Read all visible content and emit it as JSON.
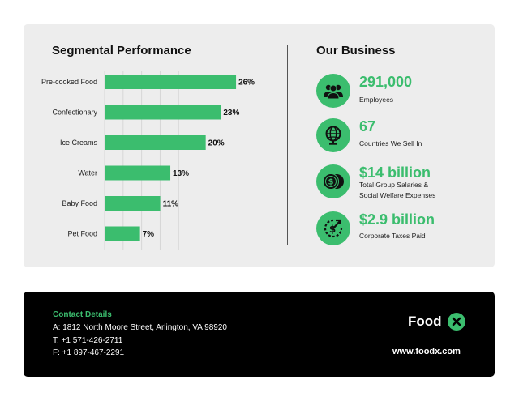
{
  "segmental": {
    "title": "Segmental Performance"
  },
  "chart_data": {
    "type": "bar",
    "orientation": "horizontal",
    "title": "Segmental Performance",
    "categories": [
      "Pre-cooked Food",
      "Confectionary",
      "Ice Creams",
      "Water",
      "Baby Food",
      "Pet Food"
    ],
    "values": [
      26,
      23,
      20,
      13,
      11,
      7
    ],
    "value_labels": [
      "26%",
      "23%",
      "20%",
      "13%",
      "11%",
      "7%"
    ],
    "unit": "%",
    "xlim": [
      0,
      30
    ],
    "grid": true,
    "legend": "none",
    "bar_color": "#3bbd6e"
  },
  "business": {
    "title": "Our Business",
    "stats": [
      {
        "value": "291,000",
        "desc": [
          "Employees"
        ],
        "icon": "people-icon"
      },
      {
        "value": "67",
        "desc": [
          "Countries We Sell In"
        ],
        "icon": "globe-icon"
      },
      {
        "value": "$14 billion",
        "desc": [
          "Total Group Salaries &",
          "Social Welfare Expenses"
        ],
        "icon": "coins-icon"
      },
      {
        "value": "$2.9 billion",
        "desc": [
          "Corporate Taxes Paid"
        ],
        "icon": "dollar-cycle-icon"
      }
    ]
  },
  "footer": {
    "contact_title": "Contact Details",
    "address": "A: 1812 North Moore Street, Arlington, VA 98920",
    "phone": "T: +1 571-426-2711",
    "fax": "F: +1 897-467-2291",
    "brand": "Food",
    "brand_icon": "close-x-icon",
    "website": "www.foodx.com"
  },
  "colors": {
    "accent": "#3bbd6e",
    "panel": "#ededed",
    "footer": "#000000"
  }
}
